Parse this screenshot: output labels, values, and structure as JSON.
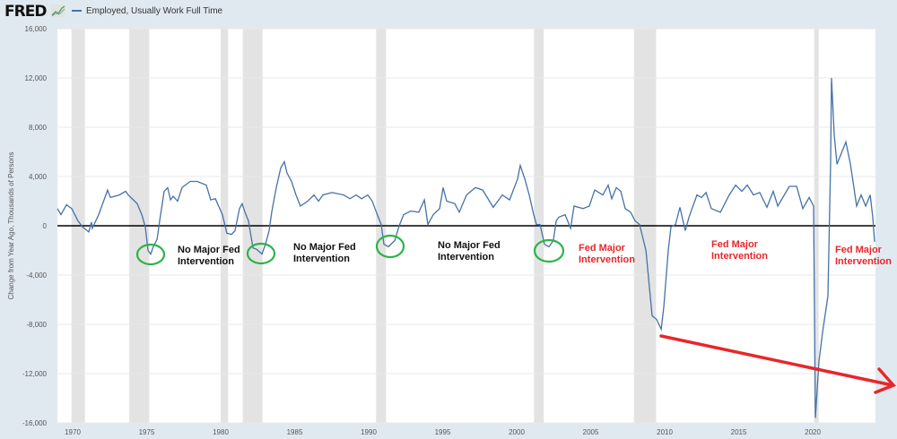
{
  "header": {
    "logo": "FRED",
    "logo_icon": "chart-line-icon",
    "legend_label": "Employed, Usually Work Full Time"
  },
  "chart_data": {
    "type": "line",
    "title": "",
    "xlabel": "",
    "ylabel": "Change from Year Ago, Thousands of Persons",
    "xlim": [
      1968.97,
      2024.24
    ],
    "ylim": [
      -16000,
      16000
    ],
    "grid": true,
    "legend_position": "top-left",
    "x_ticks": [
      1970,
      1975,
      1980,
      1985,
      1990,
      1995,
      2000,
      2005,
      2010,
      2015,
      2020
    ],
    "x_tick_labels": [
      "1970",
      "1975",
      "1980",
      "1985",
      "1990",
      "1995",
      "2000",
      "2005",
      "2010",
      "2015",
      "2020"
    ],
    "y_ticks": [
      16000,
      12000,
      8000,
      4000,
      0,
      -4000,
      -8000,
      -12000,
      -16000
    ],
    "y_tick_labels": [
      "16,000",
      "12,000",
      "8,000",
      "4,000",
      "0",
      "-4,000",
      "-8,000",
      "-12,000",
      "-16,000"
    ],
    "colors": {
      "series": "#4572a7",
      "recession": "#e3e3e3",
      "zero_line": "#000000",
      "fed_text": "#e8262b",
      "arrow": "#e8262b",
      "circle": "#2db34a"
    },
    "recessions": [
      [
        1969.92,
        1970.83
      ],
      [
        1973.83,
        1975.17
      ],
      [
        1980.0,
        1980.5
      ],
      [
        1981.5,
        1982.83
      ],
      [
        1990.5,
        1991.17
      ],
      [
        2001.17,
        2001.83
      ],
      [
        2007.92,
        2009.42
      ],
      [
        2020.1,
        2020.4
      ]
    ],
    "series": [
      {
        "name": "Employed, Usually Work Full Time",
        "points": [
          [
            1968.97,
            1400
          ],
          [
            1969.21,
            900
          ],
          [
            1969.58,
            1700
          ],
          [
            1969.94,
            1400
          ],
          [
            1970.36,
            400
          ],
          [
            1970.67,
            -100
          ],
          [
            1971.09,
            -500
          ],
          [
            1971.27,
            300
          ],
          [
            1971.33,
            -200
          ],
          [
            1971.76,
            900
          ],
          [
            1972.18,
            2300
          ],
          [
            1972.36,
            2900
          ],
          [
            1972.55,
            2300
          ],
          [
            1973.15,
            2500
          ],
          [
            1973.58,
            2800
          ],
          [
            1973.76,
            2500
          ],
          [
            1974.36,
            1800
          ],
          [
            1974.67,
            900
          ],
          [
            1974.91,
            -100
          ],
          [
            1975.09,
            -2000
          ],
          [
            1975.27,
            -2300
          ],
          [
            1975.45,
            -1700
          ],
          [
            1975.7,
            -1100
          ],
          [
            1975.88,
            400
          ],
          [
            1976.18,
            2800
          ],
          [
            1976.42,
            3100
          ],
          [
            1976.61,
            2100
          ],
          [
            1976.79,
            2400
          ],
          [
            1977.09,
            2000
          ],
          [
            1977.39,
            3100
          ],
          [
            1977.94,
            3600
          ],
          [
            1978.42,
            3600
          ],
          [
            1979.03,
            3300
          ],
          [
            1979.33,
            2100
          ],
          [
            1979.64,
            2200
          ],
          [
            1980.12,
            900
          ],
          [
            1980.42,
            -600
          ],
          [
            1980.73,
            -700
          ],
          [
            1980.97,
            -400
          ],
          [
            1981.27,
            1400
          ],
          [
            1981.45,
            1800
          ],
          [
            1981.64,
            1100
          ],
          [
            1981.88,
            400
          ],
          [
            1982.18,
            -1800
          ],
          [
            1982.42,
            -1900
          ],
          [
            1982.79,
            -2300
          ],
          [
            1983.03,
            -1500
          ],
          [
            1983.27,
            -400
          ],
          [
            1983.45,
            1100
          ],
          [
            1983.76,
            3100
          ],
          [
            1984.06,
            4700
          ],
          [
            1984.3,
            5200
          ],
          [
            1984.48,
            4300
          ],
          [
            1984.79,
            3600
          ],
          [
            1985.09,
            2500
          ],
          [
            1985.39,
            1600
          ],
          [
            1985.88,
            2000
          ],
          [
            1986.3,
            2500
          ],
          [
            1986.61,
            2000
          ],
          [
            1986.91,
            2500
          ],
          [
            1987.52,
            2700
          ],
          [
            1988.3,
            2500
          ],
          [
            1988.73,
            2200
          ],
          [
            1989.15,
            2500
          ],
          [
            1989.52,
            2200
          ],
          [
            1989.94,
            2500
          ],
          [
            1990.24,
            2000
          ],
          [
            1990.55,
            1000
          ],
          [
            1990.85,
            100
          ],
          [
            1991.03,
            -1500
          ],
          [
            1991.33,
            -1700
          ],
          [
            1991.76,
            -1200
          ],
          [
            1992.06,
            0
          ],
          [
            1992.36,
            900
          ],
          [
            1992.85,
            1200
          ],
          [
            1993.39,
            1100
          ],
          [
            1993.76,
            2100
          ],
          [
            1994.0,
            100
          ],
          [
            1994.36,
            900
          ],
          [
            1994.79,
            1400
          ],
          [
            1995.03,
            3100
          ],
          [
            1995.27,
            2000
          ],
          [
            1995.82,
            1800
          ],
          [
            1996.12,
            1100
          ],
          [
            1996.61,
            2500
          ],
          [
            1997.21,
            3100
          ],
          [
            1997.7,
            2900
          ],
          [
            1998.42,
            1500
          ],
          [
            1999.03,
            2500
          ],
          [
            1999.52,
            2100
          ],
          [
            2000.06,
            3800
          ],
          [
            2000.24,
            4900
          ],
          [
            2000.55,
            3800
          ],
          [
            2000.85,
            2500
          ],
          [
            2001.15,
            900
          ],
          [
            2001.33,
            100
          ],
          [
            2001.58,
            100
          ],
          [
            2001.88,
            -1500
          ],
          [
            2002.18,
            -1700
          ],
          [
            2002.48,
            -1200
          ],
          [
            2002.67,
            400
          ],
          [
            2002.85,
            700
          ],
          [
            2003.27,
            900
          ],
          [
            2003.64,
            -200
          ],
          [
            2003.88,
            1600
          ],
          [
            2004.48,
            1400
          ],
          [
            2004.91,
            1600
          ],
          [
            2005.27,
            2900
          ],
          [
            2005.82,
            2500
          ],
          [
            2006.18,
            3300
          ],
          [
            2006.42,
            2200
          ],
          [
            2006.73,
            3100
          ],
          [
            2007.03,
            2800
          ],
          [
            2007.33,
            1400
          ],
          [
            2007.7,
            1100
          ],
          [
            2008.0,
            400
          ],
          [
            2008.3,
            100
          ],
          [
            2008.73,
            -2000
          ],
          [
            2009.15,
            -7300
          ],
          [
            2009.45,
            -7600
          ],
          [
            2009.76,
            -8400
          ],
          [
            2009.94,
            -6600
          ],
          [
            2010.24,
            -2000
          ],
          [
            2010.42,
            -100
          ],
          [
            2010.73,
            100
          ],
          [
            2011.03,
            1500
          ],
          [
            2011.39,
            -400
          ],
          [
            2011.64,
            700
          ],
          [
            2012.18,
            2500
          ],
          [
            2012.48,
            2300
          ],
          [
            2012.79,
            2700
          ],
          [
            2013.15,
            1400
          ],
          [
            2013.76,
            1100
          ],
          [
            2014.36,
            2500
          ],
          [
            2014.79,
            3300
          ],
          [
            2015.21,
            2800
          ],
          [
            2015.58,
            3300
          ],
          [
            2016.0,
            2500
          ],
          [
            2016.42,
            2700
          ],
          [
            2016.91,
            1500
          ],
          [
            2017.33,
            2800
          ],
          [
            2017.64,
            1600
          ],
          [
            2018.42,
            3200
          ],
          [
            2018.91,
            3200
          ],
          [
            2019.33,
            1400
          ],
          [
            2019.76,
            2300
          ],
          [
            2020.06,
            1600
          ],
          [
            2020.18,
            -15600
          ],
          [
            2020.42,
            -11000
          ],
          [
            2020.67,
            -8600
          ],
          [
            2021.03,
            -5700
          ],
          [
            2021.21,
            5200
          ],
          [
            2021.27,
            12000
          ],
          [
            2021.45,
            7400
          ],
          [
            2021.64,
            5000
          ],
          [
            2022.24,
            6800
          ],
          [
            2022.55,
            5000
          ],
          [
            2022.97,
            1600
          ],
          [
            2023.27,
            2500
          ],
          [
            2023.58,
            1600
          ],
          [
            2023.88,
            2500
          ],
          [
            2024.06,
            700
          ],
          [
            2024.18,
            -1300
          ]
        ]
      }
    ],
    "annotations": [
      {
        "line1": "No Major Fed",
        "line2": "Intervention",
        "color": "#111111"
      },
      {
        "line1": "No Major Fed",
        "line2": "Intervention",
        "color": "#111111"
      },
      {
        "line1": "No Major Fed",
        "line2": "Intervention",
        "color": "#111111"
      },
      {
        "line1": "Fed Major",
        "line2": "Intervention",
        "color": "#e8262b"
      },
      {
        "line1": "Fed Major",
        "line2": "Intervention",
        "color": "#e8262b"
      },
      {
        "line1": "Fed Major",
        "line2": "Intervention",
        "color": "#e8262b"
      }
    ]
  }
}
